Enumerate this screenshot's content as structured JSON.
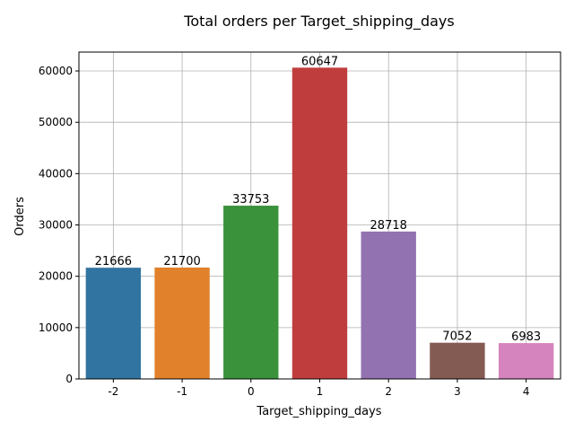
{
  "chart_data": {
    "type": "bar",
    "title": "Total orders per Target_shipping_days",
    "xlabel": "Target_shipping_days",
    "ylabel": "Orders",
    "categories": [
      "-2",
      "-1",
      "0",
      "1",
      "2",
      "3",
      "4"
    ],
    "values": [
      21666,
      21700,
      33753,
      60647,
      28718,
      7052,
      6983
    ],
    "colors": [
      "#3274a1",
      "#e1812c",
      "#3a923a",
      "#c03d3e",
      "#9372b2",
      "#845b53",
      "#d684bd"
    ],
    "ylim": [
      0,
      63680
    ],
    "yticks": [
      0,
      10000,
      20000,
      30000,
      40000,
      50000,
      60000
    ],
    "ytick_labels": [
      "0",
      "10000",
      "20000",
      "30000",
      "40000",
      "50000",
      "60000"
    ],
    "grid": true,
    "data_labels": [
      "21666",
      "21700",
      "33753",
      "60647",
      "28718",
      "7052",
      "6983"
    ]
  }
}
